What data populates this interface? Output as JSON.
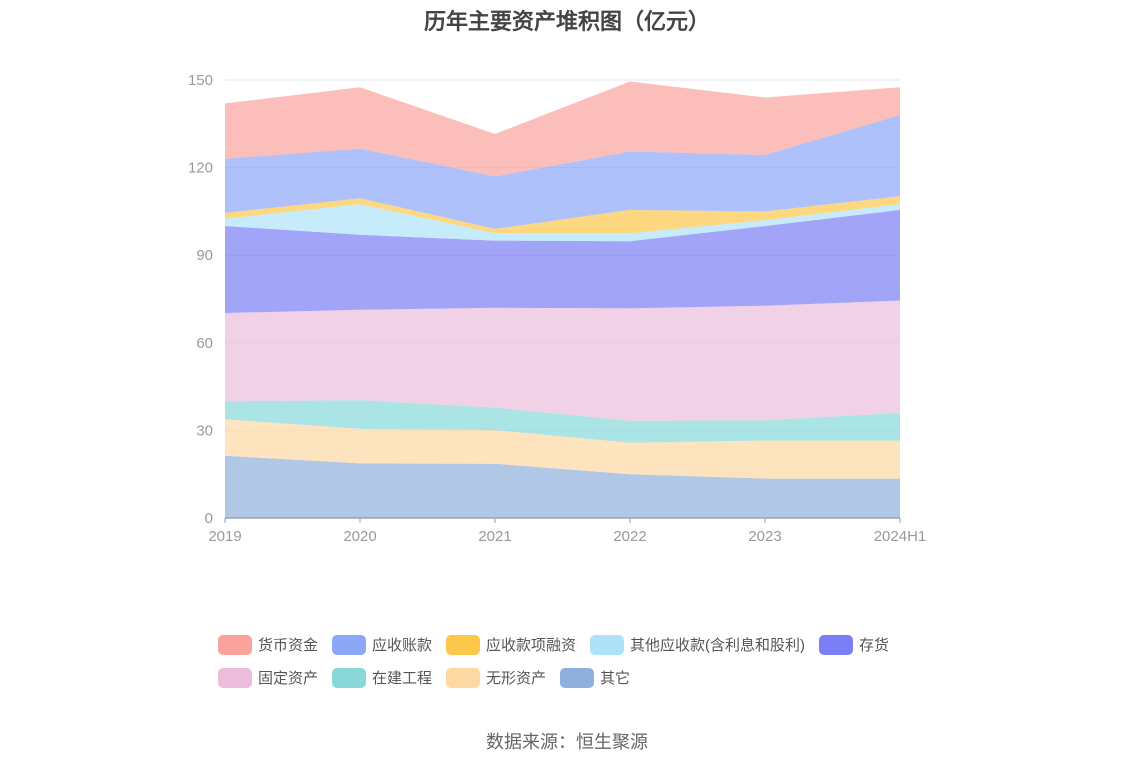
{
  "chart_data": {
    "type": "area",
    "stacked": true,
    "title": "历年主要资产堆积图（亿元）",
    "source": "数据来源：恒生聚源",
    "categories": [
      "2019",
      "2020",
      "2021",
      "2022",
      "2023",
      "2024H1"
    ],
    "ylim": [
      0,
      150
    ],
    "yticks": [
      0,
      30,
      60,
      90,
      120,
      150
    ],
    "grid": true,
    "legend_position": "bottom",
    "series": [
      {
        "name": "其它",
        "color": "#8fb0dc",
        "values": [
          21.3,
          18.7,
          18.6,
          15.0,
          13.5,
          13.5
        ]
      },
      {
        "name": "无形资产",
        "color": "#fdd8a2",
        "values": [
          12.5,
          11.8,
          11.5,
          10.8,
          13.0,
          13.0
        ]
      },
      {
        "name": "在建工程",
        "color": "#88d8d8",
        "values": [
          6.2,
          9.8,
          7.7,
          7.5,
          7.0,
          9.5
        ]
      },
      {
        "name": "固定资产",
        "color": "#ebbddb",
        "values": [
          30.2,
          31.0,
          34.2,
          38.5,
          39.2,
          38.5
        ]
      },
      {
        "name": "存货",
        "color": "#7b7ef5",
        "values": [
          29.8,
          25.7,
          23.0,
          23.0,
          27.3,
          31.0
        ]
      },
      {
        "name": "其他应收款(含利息和股利)",
        "color": "#aee2f8",
        "values": [
          2.5,
          10.5,
          2.5,
          2.7,
          2.0,
          2.0
        ]
      },
      {
        "name": "应收款项融资",
        "color": "#fdc84a",
        "values": [
          2.0,
          2.0,
          1.5,
          8.0,
          3.0,
          2.7
        ]
      },
      {
        "name": "应收账款",
        "color": "#8ca7f8",
        "values": [
          18.5,
          17.0,
          18.0,
          20.0,
          19.3,
          27.8
        ]
      },
      {
        "name": "货币资金",
        "color": "#f9a39c",
        "values": [
          19.0,
          21.0,
          14.5,
          24.0,
          19.7,
          9.5
        ]
      }
    ],
    "legend_order": [
      "货币资金",
      "应收账款",
      "应收款项融资",
      "其他应收款(含利息和股利)",
      "存货",
      "固定资产",
      "在建工程",
      "无形资产",
      "其它"
    ]
  }
}
